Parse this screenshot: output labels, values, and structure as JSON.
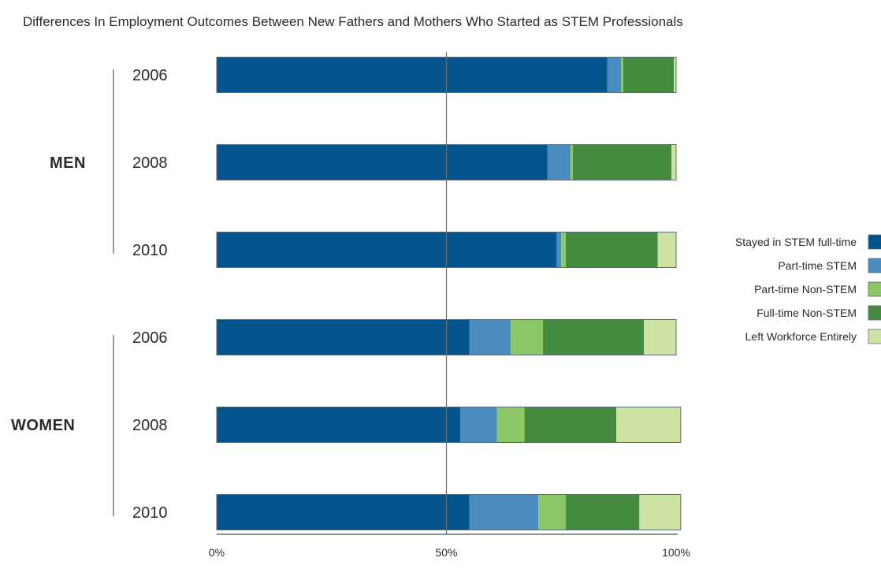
{
  "colors": {
    "stem_full": "#02548c",
    "stem_part": "#4a8cc0",
    "nonstem_part": "#8cc766",
    "nonstem_full": "#448b3f",
    "left": "#cce3a3",
    "bar_border": "#5d6b76",
    "axis": "#6b6b6b"
  },
  "chart_data": {
    "type": "bar",
    "orientation": "horizontal",
    "stacked": true,
    "title": "Differences In Employment Outcomes Between New Fathers and Mothers Who Started as STEM Professionals",
    "groups": [
      {
        "label": "MEN",
        "categories": [
          "2006",
          "2008",
          "2010"
        ]
      },
      {
        "label": "WOMEN",
        "categories": [
          "2006",
          "2008",
          "2010"
        ]
      }
    ],
    "series": [
      {
        "name": "Stayed in STEM full-time",
        "color": "#02548c",
        "values": [
          85,
          72,
          74,
          55,
          53,
          55
        ]
      },
      {
        "name": "Part-time STEM",
        "color": "#4a8cc0",
        "values": [
          3,
          5,
          1,
          9,
          8,
          15
        ]
      },
      {
        "name": "Part-time Non-STEM",
        "color": "#8cc766",
        "values": [
          0.5,
          0.5,
          1,
          7,
          6,
          6
        ]
      },
      {
        "name": "Full-time Non-STEM",
        "color": "#448b3f",
        "values": [
          11,
          21.5,
          20,
          22,
          20,
          16
        ]
      },
      {
        "name": "Left Workforce Entirely",
        "color": "#cce3a3",
        "values": [
          0.5,
          1,
          4,
          7,
          14,
          9
        ]
      }
    ],
    "xlim": [
      0,
      100
    ],
    "xticks": [
      "0%",
      "50%",
      "100%"
    ],
    "reference_line": 50,
    "legend_position": "right"
  }
}
